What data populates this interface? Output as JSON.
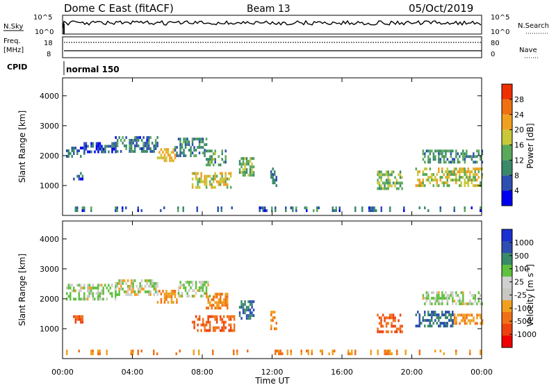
{
  "header": {
    "station": "Dome C East (fitACF)",
    "beam": "Beam 13",
    "date": "05/Oct/2019"
  },
  "top_panels": {
    "nsky_label": "N.Sky",
    "nsky_ticks": [
      "10^5",
      "10^0"
    ],
    "nsearch_ticks": [
      "10^5",
      "10^0"
    ],
    "nsearch_label": "N.Search",
    "freq_label_1": "Freq.",
    "freq_label_2": "[MHz]",
    "freq_ticks": [
      "18",
      "8"
    ],
    "nave_ticks": [
      "80",
      "0"
    ],
    "nave_label": "Nave",
    "cpid_label": "CPID",
    "cpid_value": "normal 150"
  },
  "colors": {
    "power_scale": [
      "#0000ee",
      "#2f4fb0",
      "#3a8a6a",
      "#5aa85a",
      "#c8c83a",
      "#f0a020",
      "#ee7010",
      "#ee3000"
    ],
    "velocity_scale": [
      "#ee0000",
      "#ee4010",
      "#f07018",
      "#f0a020",
      "#c8c8c0",
      "#d0d0d0",
      "#60c040",
      "#3a8a6a",
      "#2f4fb0",
      "#1a30d0"
    ]
  },
  "chart_data": [
    {
      "type": "heatmap",
      "name_hint": "power",
      "ylabel": "Slant Range [km]",
      "yticks": [
        "1000",
        "2000",
        "3000",
        "4000"
      ],
      "ylim": [
        0,
        4600
      ],
      "colorbar_label": "Power [dB]",
      "colorbar_ticks": [
        "4",
        "8",
        "12",
        "16",
        "20",
        "24",
        "28"
      ],
      "colorbar_range": [
        0,
        32
      ],
      "patches": [
        {
          "t": [
            0.2,
            1.2
          ],
          "r": [
            1950,
            2300
          ],
          "v": 7
        },
        {
          "t": [
            1.2,
            3.0
          ],
          "r": [
            2100,
            2450
          ],
          "v": 6
        },
        {
          "t": [
            3.0,
            5.4
          ],
          "r": [
            2150,
            2650
          ],
          "v": 8
        },
        {
          "t": [
            5.4,
            6.4
          ],
          "r": [
            1850,
            2250
          ],
          "v": 20
        },
        {
          "t": [
            6.4,
            8.2
          ],
          "r": [
            2000,
            2600
          ],
          "v": 9
        },
        {
          "t": [
            8.2,
            9.4
          ],
          "r": [
            1650,
            2200
          ],
          "v": 12
        },
        {
          "t": [
            7.4,
            9.6
          ],
          "r": [
            950,
            1450
          ],
          "v": 18
        },
        {
          "t": [
            10.1,
            10.9
          ],
          "r": [
            1300,
            1950
          ],
          "v": 14
        },
        {
          "t": [
            11.9,
            12.2
          ],
          "r": [
            950,
            1600
          ],
          "v": 9
        },
        {
          "t": [
            18.0,
            19.4
          ],
          "r": [
            900,
            1500
          ],
          "v": 15
        },
        {
          "t": [
            20.2,
            24.0
          ],
          "r": [
            1000,
            1600
          ],
          "v": 17
        },
        {
          "t": [
            20.6,
            24.0
          ],
          "r": [
            1800,
            2200
          ],
          "v": 11
        },
        {
          "t": [
            0.6,
            1.1
          ],
          "r": [
            1200,
            1450
          ],
          "v": 8
        },
        {
          "t": [
            0.0,
            24.0
          ],
          "r": [
            200,
            300
          ],
          "v": 8
        }
      ]
    },
    {
      "type": "heatmap",
      "name_hint": "velocity",
      "ylabel": "Slant Range [km]",
      "yticks": [
        "1000",
        "2000",
        "3000",
        "4000"
      ],
      "ylim": [
        0,
        4600
      ],
      "xlabel": "Time UT",
      "xticks": [
        "00:00",
        "04:00",
        "08:00",
        "12:00",
        "16:00",
        "20:00",
        "00:00"
      ],
      "xlim": [
        0,
        24
      ],
      "colorbar_label": "Velocity [m s^-1]",
      "colorbar_ticks": [
        "-1000",
        "-500",
        "-100",
        "-25",
        "25",
        "100",
        "500",
        "1000"
      ],
      "patches": [
        {
          "t": [
            0.2,
            3.0
          ],
          "r": [
            2000,
            2500
          ],
          "v": 25
        },
        {
          "t": [
            3.0,
            5.4
          ],
          "r": [
            2100,
            2650
          ],
          "v": 0
        },
        {
          "t": [
            5.4,
            6.6
          ],
          "r": [
            1850,
            2300
          ],
          "v": -100
        },
        {
          "t": [
            6.6,
            8.4
          ],
          "r": [
            2050,
            2600
          ],
          "v": 20
        },
        {
          "t": [
            7.4,
            9.8
          ],
          "r": [
            950,
            1450
          ],
          "v": -500
        },
        {
          "t": [
            8.2,
            9.4
          ],
          "r": [
            1650,
            2200
          ],
          "v": -100
        },
        {
          "t": [
            10.1,
            10.9
          ],
          "r": [
            1300,
            1950
          ],
          "v": 500
        },
        {
          "t": [
            0.6,
            1.1
          ],
          "r": [
            1200,
            1450
          ],
          "v": -500
        },
        {
          "t": [
            11.9,
            12.2
          ],
          "r": [
            950,
            1600
          ],
          "v": -100
        },
        {
          "t": [
            18.0,
            19.4
          ],
          "r": [
            900,
            1500
          ],
          "v": -500
        },
        {
          "t": [
            20.2,
            22.4
          ],
          "r": [
            1100,
            1600
          ],
          "v": 500
        },
        {
          "t": [
            22.4,
            24.0
          ],
          "r": [
            1150,
            1500
          ],
          "v": -100
        },
        {
          "t": [
            20.6,
            24.0
          ],
          "r": [
            1800,
            2250
          ],
          "v": 25
        },
        {
          "t": [
            0.0,
            24.0
          ],
          "r": [
            200,
            300
          ],
          "v": -100
        }
      ]
    }
  ]
}
